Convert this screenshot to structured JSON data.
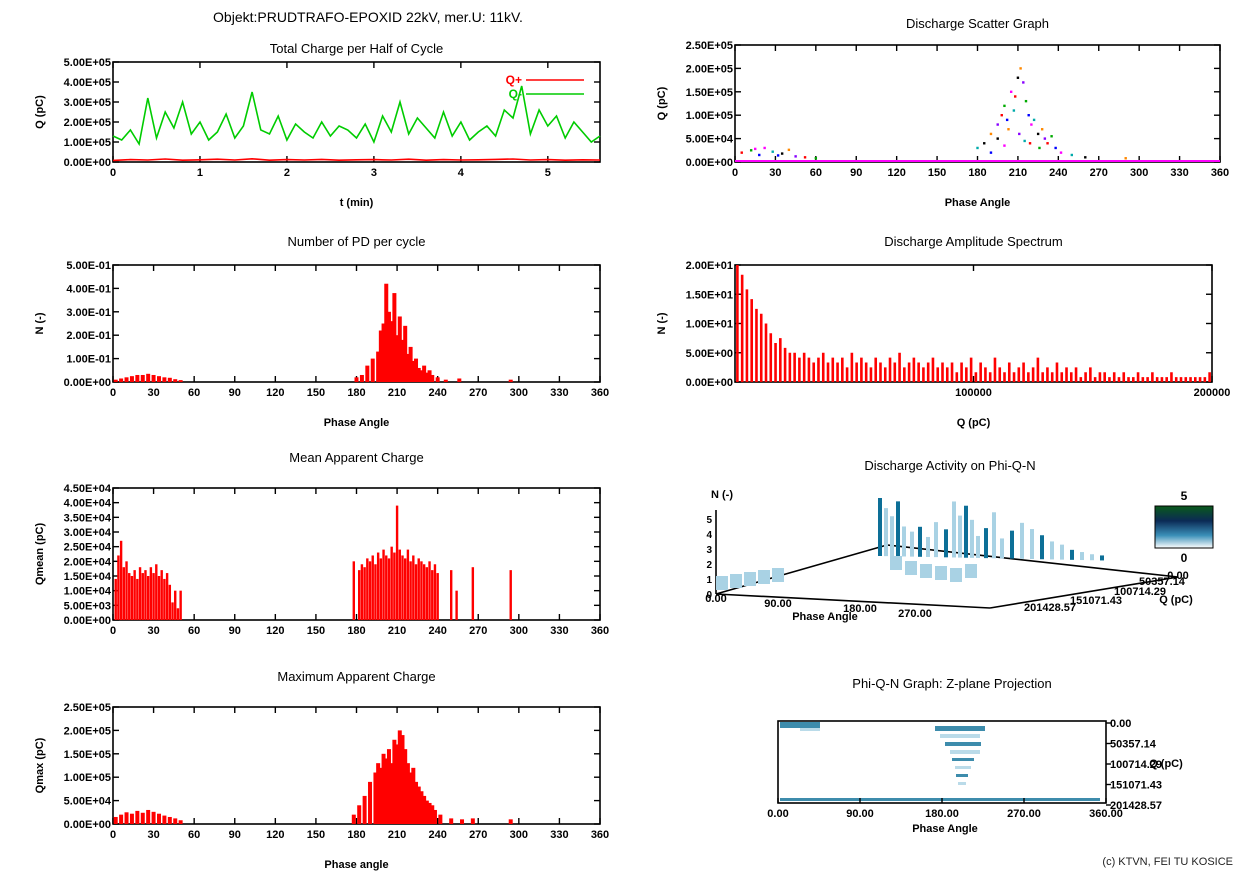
{
  "header": {
    "object_title": "Objekt:PRUDTRAFO-EPOXID 22kV, mer.U: 11kV.",
    "copyright": "(c) KTVN, FEI TU KOSICE"
  },
  "colors": {
    "red": "#ff0000",
    "green": "#00cc00",
    "magenta": "#ff00ff",
    "teal": "#0d6f97",
    "light_teal": "#a9d2e4"
  },
  "chart_data": [
    {
      "id": "total_charge",
      "type": "line",
      "title": "Total Charge per Half of Cycle",
      "xlabel": "t (min)",
      "ylabel": "Q (pC)",
      "xlim": [
        0,
        5.6
      ],
      "ylim": [
        0,
        500000
      ],
      "xticks": [
        "0",
        "1",
        "2",
        "3",
        "4",
        "5"
      ],
      "xtick_values": [
        0,
        1,
        2,
        3,
        4,
        5
      ],
      "yticks": [
        "0.00E+00",
        "1.00E+05",
        "2.00E+05",
        "3.00E+05",
        "4.00E+05",
        "5.00E+05"
      ],
      "series": [
        {
          "name": "Q+",
          "color": "#ff0000",
          "x": [
            0,
            0.2,
            0.4,
            0.6,
            0.8,
            1.0,
            1.2,
            1.4,
            1.6,
            1.8,
            2.0,
            2.2,
            2.4,
            2.6,
            2.8,
            3.0,
            3.2,
            3.4,
            3.6,
            3.8,
            4.0,
            4.2,
            4.4,
            4.6,
            4.8,
            5.0,
            5.2,
            5.4,
            5.6
          ],
          "y": [
            8000,
            12000,
            10000,
            15000,
            9000,
            11000,
            14000,
            10000,
            16000,
            9000,
            12000,
            10000,
            13000,
            9000,
            11000,
            12000,
            10000,
            14000,
            9000,
            12000,
            10000,
            11000,
            13000,
            15000,
            10000,
            12000,
            9000,
            11000,
            10000
          ]
        },
        {
          "name": "Q-",
          "color": "#00cc00",
          "x": [
            0,
            0.1,
            0.2,
            0.3,
            0.4,
            0.5,
            0.6,
            0.7,
            0.8,
            0.9,
            1.0,
            1.1,
            1.2,
            1.3,
            1.4,
            1.5,
            1.6,
            1.7,
            1.8,
            1.9,
            2.0,
            2.1,
            2.2,
            2.3,
            2.4,
            2.5,
            2.6,
            2.7,
            2.8,
            2.9,
            3.0,
            3.1,
            3.2,
            3.3,
            3.4,
            3.5,
            3.6,
            3.7,
            3.8,
            3.9,
            4.0,
            4.1,
            4.2,
            4.3,
            4.4,
            4.5,
            4.6,
            4.7,
            4.8,
            4.9,
            5.0,
            5.1,
            5.2,
            5.3,
            5.4,
            5.5,
            5.6
          ],
          "y": [
            130000,
            110000,
            160000,
            90000,
            320000,
            120000,
            250000,
            170000,
            300000,
            140000,
            200000,
            110000,
            150000,
            240000,
            120000,
            180000,
            350000,
            160000,
            140000,
            230000,
            110000,
            190000,
            150000,
            120000,
            200000,
            130000,
            180000,
            160000,
            120000,
            190000,
            100000,
            230000,
            150000,
            300000,
            140000,
            220000,
            170000,
            120000,
            250000,
            130000,
            200000,
            110000,
            150000,
            180000,
            130000,
            260000,
            220000,
            380000,
            140000,
            260000,
            180000,
            230000,
            120000,
            200000,
            150000,
            100000,
            130000
          ]
        }
      ]
    },
    {
      "id": "pd_per_cycle",
      "type": "bar",
      "title": "Number of PD per cycle",
      "xlabel": "Phase Angle",
      "ylabel": "N (-)",
      "xlim": [
        0,
        360
      ],
      "ylim": [
        0,
        0.5
      ],
      "xticks": [
        "0",
        "30",
        "60",
        "90",
        "120",
        "150",
        "180",
        "210",
        "240",
        "270",
        "300",
        "330",
        "360"
      ],
      "yticks": [
        "0.00E+00",
        "1.00E-01",
        "2.00E-01",
        "3.00E-01",
        "4.00E-01",
        "5.00E-01"
      ],
      "x": [
        2,
        6,
        10,
        14,
        18,
        22,
        26,
        30,
        34,
        38,
        42,
        46,
        50,
        180,
        184,
        188,
        192,
        196,
        198,
        200,
        202,
        204,
        206,
        208,
        210,
        212,
        214,
        216,
        218,
        220,
        222,
        224,
        226,
        228,
        230,
        232,
        234,
        236,
        240,
        246,
        256,
        294
      ],
      "values": [
        0.01,
        0.015,
        0.02,
        0.025,
        0.03,
        0.03,
        0.035,
        0.03,
        0.025,
        0.02,
        0.018,
        0.012,
        0.008,
        0.02,
        0.03,
        0.07,
        0.1,
        0.13,
        0.22,
        0.25,
        0.42,
        0.3,
        0.26,
        0.38,
        0.2,
        0.28,
        0.18,
        0.24,
        0.12,
        0.15,
        0.09,
        0.1,
        0.06,
        0.05,
        0.07,
        0.04,
        0.05,
        0.03,
        0.02,
        0.01,
        0.015,
        0.01
      ]
    },
    {
      "id": "mean_charge",
      "type": "bar",
      "title": "Mean Apparent Charge",
      "xlabel": "",
      "ylabel": "Qmean (pC)",
      "xlim": [
        0,
        360
      ],
      "ylim": [
        0,
        45000
      ],
      "xticks": [
        "0",
        "30",
        "60",
        "90",
        "120",
        "150",
        "180",
        "210",
        "240",
        "270",
        "300",
        "330",
        "360"
      ],
      "yticks": [
        "0.00E+00",
        "5.00E+03",
        "1.00E+04",
        "1.50E+04",
        "2.00E+04",
        "2.50E+04",
        "3.00E+04",
        "3.50E+04",
        "4.00E+04",
        "4.50E+04"
      ],
      "x": [
        2,
        4,
        6,
        8,
        10,
        12,
        14,
        16,
        18,
        20,
        22,
        24,
        26,
        28,
        30,
        32,
        34,
        36,
        38,
        40,
        42,
        44,
        46,
        48,
        50,
        178,
        182,
        184,
        186,
        188,
        190,
        192,
        194,
        196,
        198,
        200,
        202,
        204,
        206,
        208,
        210,
        212,
        214,
        216,
        218,
        220,
        222,
        224,
        226,
        228,
        230,
        232,
        234,
        236,
        238,
        240,
        250,
        254,
        266,
        294
      ],
      "values": [
        14000,
        22000,
        27000,
        18000,
        20000,
        16000,
        15000,
        17000,
        14000,
        18000,
        16000,
        17000,
        15000,
        18000,
        16000,
        19000,
        15000,
        17000,
        14000,
        16000,
        12000,
        6000,
        10000,
        4000,
        10000,
        20000,
        17000,
        19000,
        18000,
        21000,
        20000,
        22000,
        19000,
        23000,
        21000,
        24000,
        22000,
        21000,
        25000,
        23000,
        39000,
        24000,
        22000,
        21000,
        24000,
        20000,
        22000,
        19000,
        21000,
        20000,
        19000,
        18000,
        20000,
        17000,
        19000,
        16000,
        17000,
        10000,
        18000,
        17000
      ]
    },
    {
      "id": "max_charge",
      "type": "bar",
      "title": "Maximum Apparent Charge",
      "xlabel": "Phase angle",
      "ylabel": "Qmax (pC)",
      "xlim": [
        0,
        360
      ],
      "ylim": [
        0,
        250000
      ],
      "xticks": [
        "0",
        "30",
        "60",
        "90",
        "120",
        "150",
        "180",
        "210",
        "240",
        "270",
        "300",
        "330",
        "360"
      ],
      "yticks": [
        "0.00E+00",
        "5.00E+04",
        "1.00E+05",
        "1.50E+05",
        "2.00E+05",
        "2.50E+05"
      ],
      "x": [
        2,
        6,
        10,
        14,
        18,
        22,
        26,
        30,
        34,
        38,
        42,
        46,
        50,
        178,
        182,
        186,
        190,
        194,
        196,
        198,
        200,
        202,
        204,
        206,
        208,
        210,
        212,
        214,
        216,
        218,
        220,
        222,
        224,
        226,
        228,
        230,
        232,
        234,
        236,
        238,
        242,
        250,
        258,
        266,
        294
      ],
      "values": [
        15000,
        20000,
        25000,
        22000,
        28000,
        24000,
        30000,
        26000,
        22000,
        18000,
        15000,
        12000,
        8000,
        20000,
        40000,
        60000,
        90000,
        110000,
        130000,
        120000,
        150000,
        140000,
        160000,
        130000,
        180000,
        170000,
        200000,
        190000,
        160000,
        130000,
        110000,
        120000,
        90000,
        80000,
        70000,
        60000,
        50000,
        45000,
        40000,
        30000,
        20000,
        12000,
        10000,
        12000,
        10000
      ]
    },
    {
      "id": "scatter",
      "type": "scatter",
      "title": "Discharge Scatter Graph",
      "xlabel": "Phase Angle",
      "ylabel": "Q (pC)",
      "xlim": [
        0,
        360
      ],
      "ylim": [
        0,
        250000
      ],
      "xticks": [
        "0",
        "30",
        "60",
        "90",
        "120",
        "150",
        "180",
        "210",
        "240",
        "270",
        "300",
        "330",
        "360"
      ],
      "yticks": [
        "0.00E+00",
        "5.00E+04",
        "1.00E+05",
        "1.50E+05",
        "2.00E+05",
        "2.50E+05"
      ],
      "points": [
        [
          5,
          20000
        ],
        [
          12,
          25000
        ],
        [
          18,
          15000
        ],
        [
          22,
          30000
        ],
        [
          28,
          22000
        ],
        [
          35,
          18000
        ],
        [
          40,
          26000
        ],
        [
          45,
          12000
        ],
        [
          52,
          10000
        ],
        [
          60,
          8000
        ],
        [
          32,
          14000
        ],
        [
          15,
          28000
        ],
        [
          180,
          30000
        ],
        [
          185,
          40000
        ],
        [
          190,
          60000
        ],
        [
          195,
          80000
        ],
        [
          198,
          100000
        ],
        [
          200,
          120000
        ],
        [
          202,
          90000
        ],
        [
          205,
          150000
        ],
        [
          207,
          110000
        ],
        [
          210,
          180000
        ],
        [
          212,
          200000
        ],
        [
          214,
          170000
        ],
        [
          208,
          140000
        ],
        [
          216,
          130000
        ],
        [
          218,
          100000
        ],
        [
          220,
          80000
        ],
        [
          222,
          90000
        ],
        [
          225,
          60000
        ],
        [
          228,
          70000
        ],
        [
          230,
          50000
        ],
        [
          232,
          40000
        ],
        [
          235,
          55000
        ],
        [
          238,
          30000
        ],
        [
          242,
          20000
        ],
        [
          250,
          15000
        ],
        [
          195,
          50000
        ],
        [
          203,
          70000
        ],
        [
          211,
          60000
        ],
        [
          219,
          40000
        ],
        [
          226,
          30000
        ],
        [
          190,
          20000
        ],
        [
          200,
          35000
        ],
        [
          215,
          45000
        ],
        [
          260,
          10000
        ],
        [
          290,
          8000
        ]
      ]
    },
    {
      "id": "amplitude_spectrum",
      "type": "bar",
      "title": "Discharge Amplitude Spectrum",
      "xlabel": "Q (pC)",
      "ylabel": "N (-)",
      "xlim": [
        0,
        200000
      ],
      "ylim": [
        0,
        24
      ],
      "xticks": [
        "100000",
        "200000"
      ],
      "xtick_values": [
        100000,
        200000
      ],
      "yticks": [
        "0.00E+00",
        "5.00E+00",
        "1.00E+01",
        "1.50E+01",
        "2.00E+01"
      ],
      "values": [
        24,
        22,
        19,
        17,
        15,
        14,
        12,
        10,
        8,
        9,
        7,
        6,
        6,
        5,
        6,
        5,
        4,
        5,
        6,
        4,
        5,
        4,
        5,
        3,
        6,
        4,
        5,
        4,
        3,
        5,
        4,
        3,
        5,
        4,
        6,
        3,
        4,
        5,
        4,
        3,
        4,
        5,
        3,
        4,
        3,
        4,
        2,
        4,
        3,
        5,
        2,
        4,
        3,
        2,
        5,
        3,
        2,
        4,
        2,
        3,
        4,
        2,
        3,
        5,
        2,
        3,
        2,
        4,
        2,
        3,
        2,
        3,
        1,
        2,
        3,
        1,
        2,
        2,
        1,
        2,
        1,
        2,
        1,
        1,
        2,
        1,
        1,
        2,
        1,
        1,
        1,
        2,
        1,
        1,
        1,
        1,
        1,
        1,
        1,
        2
      ]
    },
    {
      "id": "phi_q_n_3d",
      "type": "heatmap",
      "title": "Discharge Activity on Phi-Q-N",
      "xlabel": "Phase Angle",
      "ylabel": "Q (pC)",
      "zlabel": "N (-)",
      "xticks": [
        "0.00",
        "90.00",
        "180.00",
        "270.00"
      ],
      "qticks": [
        "0.00",
        "50357.14",
        "100714.29",
        "151071.43",
        "201428.57"
      ],
      "qticks_visible": [
        "0.00",
        "201428.57",
        "151071.43",
        "100714.29",
        "50357.14"
      ],
      "zticks": [
        "0",
        "1",
        "2",
        "3",
        "4",
        "5"
      ],
      "colorbar": {
        "max": "5",
        "min": "0"
      }
    },
    {
      "id": "z_projection",
      "type": "heatmap",
      "title": "Phi-Q-N Graph: Z-plane Projection",
      "xlabel": "Phase Angle",
      "ylabel": "Q (pC)",
      "xticks": [
        "0.00",
        "90.00",
        "180.00",
        "270.00",
        "360.00"
      ],
      "yticks": [
        "0.00",
        "50357.14",
        "100714.29",
        "151071.43",
        "201428.57"
      ]
    }
  ]
}
